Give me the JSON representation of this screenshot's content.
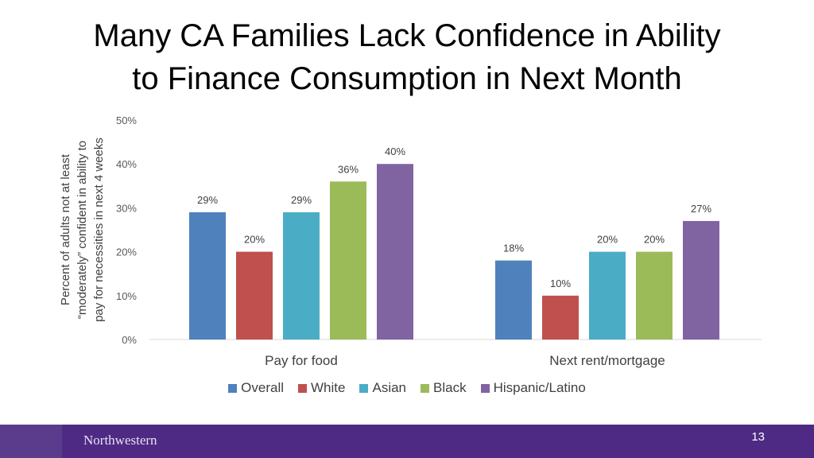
{
  "slide": {
    "title_line1": "Many CA Families Lack Confidence in Ability",
    "title_line2": "to Finance Consumption in Next Month",
    "footer_logo": "Northwestern",
    "page_number": "13"
  },
  "colors": {
    "footer": "#4e2a84",
    "series": [
      "#4f81bd",
      "#c0504d",
      "#4bacc6",
      "#9bbb59",
      "#8064a2"
    ]
  },
  "chart_data": {
    "type": "bar",
    "categories": [
      "Pay for food",
      "Next rent/mortgage"
    ],
    "series": [
      {
        "name": "Overall",
        "values": [
          29,
          18
        ],
        "labels": [
          "29%",
          "18%"
        ]
      },
      {
        "name": "White",
        "values": [
          20,
          10
        ],
        "labels": [
          "20%",
          "10%"
        ]
      },
      {
        "name": "Asian",
        "values": [
          29,
          20
        ],
        "labels": [
          "29%",
          "20%"
        ]
      },
      {
        "name": "Black",
        "values": [
          36,
          20
        ],
        "labels": [
          "36%",
          "20%"
        ]
      },
      {
        "name": "Hispanic/Latino",
        "values": [
          40,
          27
        ],
        "labels": [
          "40%",
          "27%"
        ]
      }
    ],
    "ylabel_lines": [
      "Percent of adults not at least",
      "“moderately” confident in ability to",
      "pay for necessities in next 4 weeks"
    ],
    "yticks": [
      0,
      10,
      20,
      30,
      40,
      50
    ],
    "ytick_labels": [
      "0%",
      "10%",
      "20%",
      "30%",
      "40%",
      "50%"
    ],
    "ylim": [
      0,
      50
    ],
    "grid": false,
    "legend": "bottom"
  }
}
